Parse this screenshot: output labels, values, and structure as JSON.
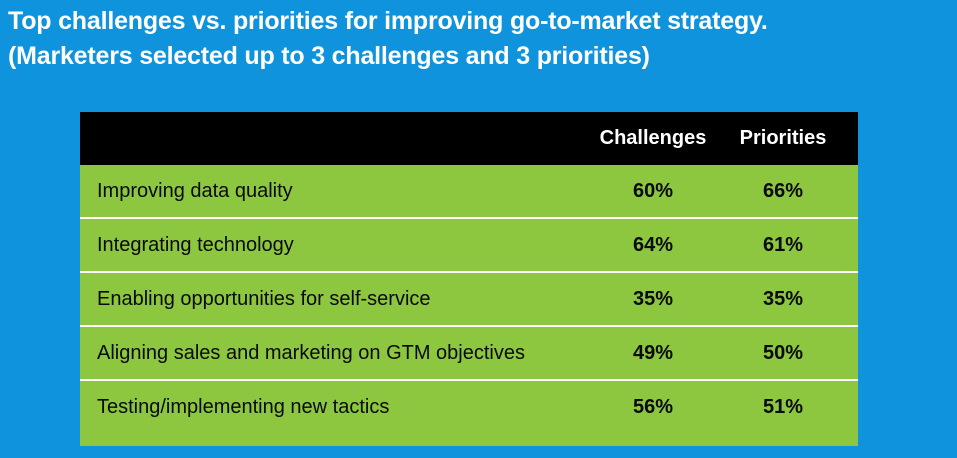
{
  "title": {
    "line1": "Top challenges vs. priorities for improving go-to-market strategy.",
    "line2": "(Marketers selected up to 3 challenges and 3 priorities)"
  },
  "colors": {
    "background": "#0e93dc",
    "header": "#000000",
    "rows": "#8dc63f",
    "divider": "#ffffff"
  },
  "chart_data": {
    "type": "table",
    "title": "Top challenges vs. priorities for improving go-to-market strategy. (Marketers selected up to 3 challenges and 3 priorities)",
    "columns": [
      "",
      "Challenges",
      "Priorities"
    ],
    "rows": [
      {
        "label": "Improving data quality",
        "challenges": "60%",
        "priorities": "66%"
      },
      {
        "label": "Integrating technology",
        "challenges": "64%",
        "priorities": "61%"
      },
      {
        "label": "Enabling opportunities for self-service",
        "challenges": "35%",
        "priorities": "35%"
      },
      {
        "label": "Aligning sales and marketing on GTM objectives",
        "challenges": "49%",
        "priorities": "50%"
      },
      {
        "label": "Testing/implementing new tactics",
        "challenges": "56%",
        "priorities": "51%"
      }
    ]
  }
}
